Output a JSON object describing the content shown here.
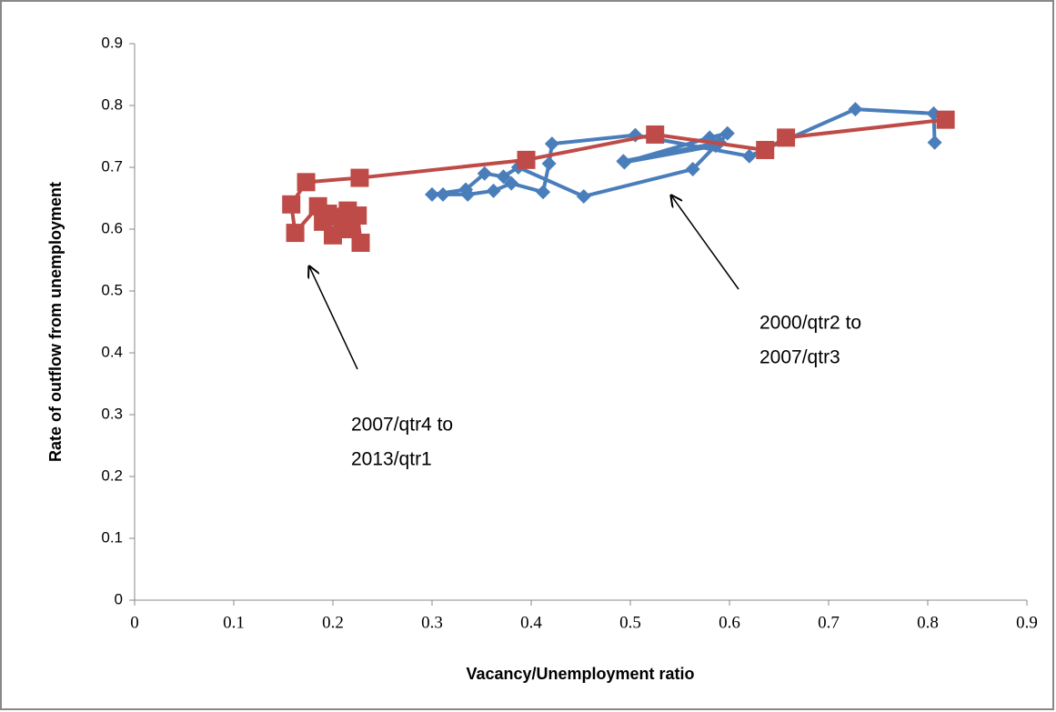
{
  "chart_data": {
    "type": "scatter",
    "x_label": "Vacancy/Unemployment ratio",
    "y_label": "Rate of outflow from unemployment",
    "xlim": [
      0,
      0.9
    ],
    "ylim": [
      0,
      0.9
    ],
    "xticks": [
      0,
      0.1,
      0.2,
      0.3,
      0.4,
      0.5,
      0.6,
      0.7,
      0.8,
      0.9
    ],
    "yticks": [
      0,
      0.1,
      0.2,
      0.3,
      0.4,
      0.5,
      0.6,
      0.7,
      0.8,
      0.9
    ],
    "series": [
      {
        "color": "#4a7ebb",
        "marker": "diamond",
        "x": [
          0.807,
          0.806,
          0.727,
          0.62,
          0.505,
          0.421,
          0.418,
          0.412,
          0.38,
          0.362,
          0.336,
          0.311,
          0.3,
          0.334,
          0.353,
          0.372,
          0.387,
          0.453,
          0.563,
          0.586,
          0.494,
          0.58,
          0.598,
          0.59,
          0.493
        ],
        "values": [
          0.74,
          0.787,
          0.794,
          0.718,
          0.752,
          0.738,
          0.706,
          0.66,
          0.674,
          0.662,
          0.656,
          0.656,
          0.656,
          0.664,
          0.69,
          0.685,
          0.7,
          0.653,
          0.697,
          0.735,
          0.708,
          0.748,
          0.755,
          0.74,
          0.71
        ]
      },
      {
        "color": "#be4b48",
        "marker": "square",
        "x": [
          0.818,
          0.657,
          0.636,
          0.525,
          0.395,
          0.227,
          0.173,
          0.158,
          0.162,
          0.185,
          0.19,
          0.2,
          0.205,
          0.215,
          0.225,
          0.228,
          0.218,
          0.195,
          0.21
        ],
        "values": [
          0.777,
          0.748,
          0.728,
          0.753,
          0.712,
          0.683,
          0.676,
          0.64,
          0.594,
          0.637,
          0.612,
          0.59,
          0.62,
          0.63,
          0.622,
          0.578,
          0.6,
          0.625,
          0.605
        ]
      }
    ],
    "annotations": [
      {
        "lines": [
          "2000/qtr2 to",
          "2007/qtr3"
        ]
      },
      {
        "lines": [
          "2007/qtr4 to",
          "2013/qtr1"
        ]
      }
    ]
  }
}
